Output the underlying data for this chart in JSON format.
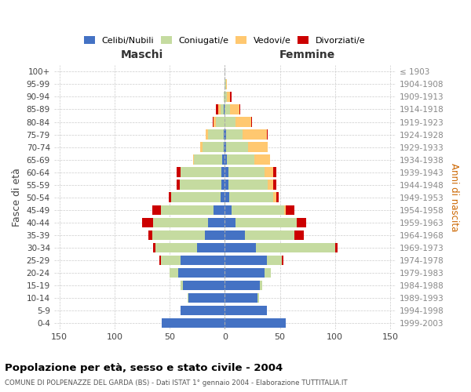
{
  "age_groups": [
    "0-4",
    "5-9",
    "10-14",
    "15-19",
    "20-24",
    "25-29",
    "30-34",
    "35-39",
    "40-44",
    "45-49",
    "50-54",
    "55-59",
    "60-64",
    "65-69",
    "70-74",
    "75-79",
    "80-84",
    "85-89",
    "90-94",
    "95-99",
    "100+"
  ],
  "birth_years": [
    "1999-2003",
    "1994-1998",
    "1989-1993",
    "1984-1988",
    "1979-1983",
    "1974-1978",
    "1969-1973",
    "1964-1968",
    "1959-1963",
    "1954-1958",
    "1949-1953",
    "1944-1948",
    "1939-1943",
    "1934-1938",
    "1929-1933",
    "1924-1928",
    "1919-1923",
    "1914-1918",
    "1909-1913",
    "1904-1908",
    "≤ 1903"
  ],
  "males_celibi": [
    57,
    40,
    33,
    38,
    42,
    40,
    25,
    18,
    15,
    10,
    4,
    3,
    3,
    2,
    1,
    1,
    0,
    1,
    0,
    0,
    0
  ],
  "males_coniugati": [
    0,
    0,
    1,
    2,
    8,
    18,
    38,
    48,
    50,
    48,
    45,
    38,
    37,
    26,
    19,
    14,
    8,
    3,
    1,
    0,
    0
  ],
  "males_vedovi": [
    0,
    0,
    0,
    0,
    0,
    0,
    0,
    0,
    0,
    0,
    0,
    0,
    0,
    1,
    2,
    2,
    2,
    2,
    0,
    0,
    0
  ],
  "males_divorziati": [
    0,
    0,
    0,
    0,
    0,
    1,
    2,
    3,
    10,
    8,
    2,
    3,
    4,
    0,
    0,
    0,
    1,
    2,
    0,
    0,
    0
  ],
  "females_nubili": [
    55,
    38,
    30,
    32,
    36,
    38,
    28,
    18,
    10,
    6,
    4,
    3,
    3,
    2,
    1,
    1,
    0,
    0,
    0,
    0,
    0
  ],
  "females_coniugate": [
    0,
    0,
    1,
    2,
    6,
    14,
    72,
    45,
    55,
    48,
    40,
    36,
    33,
    25,
    20,
    15,
    10,
    5,
    2,
    1,
    0
  ],
  "females_vedove": [
    0,
    0,
    0,
    0,
    0,
    0,
    0,
    0,
    0,
    1,
    3,
    5,
    8,
    14,
    18,
    22,
    14,
    8,
    3,
    1,
    0
  ],
  "females_divorziate": [
    0,
    0,
    0,
    0,
    0,
    1,
    2,
    9,
    9,
    8,
    2,
    3,
    3,
    0,
    0,
    1,
    1,
    1,
    1,
    0,
    0
  ],
  "color_celibi": "#4472c4",
  "color_coniugati": "#c5dba0",
  "color_vedovi": "#ffc870",
  "color_divorziati": "#cc0000",
  "title": "Popolazione per età, sesso e stato civile - 2004",
  "subtitle": "COMUNE DI POLPENAZZE DEL GARDA (BS) - Dati ISTAT 1° gennaio 2004 - Elaborazione TUTTITALIA.IT",
  "label_maschi": "Maschi",
  "label_femmine": "Femmine",
  "ylabel_left": "Fasce di età",
  "ylabel_right": "Anni di nascita",
  "xlim": 155,
  "legend_labels": [
    "Celibi/Nubili",
    "Coniugati/e",
    "Vedovi/e",
    "Divorziati/e"
  ],
  "bg_color": "#ffffff",
  "grid_color": "#cccccc"
}
